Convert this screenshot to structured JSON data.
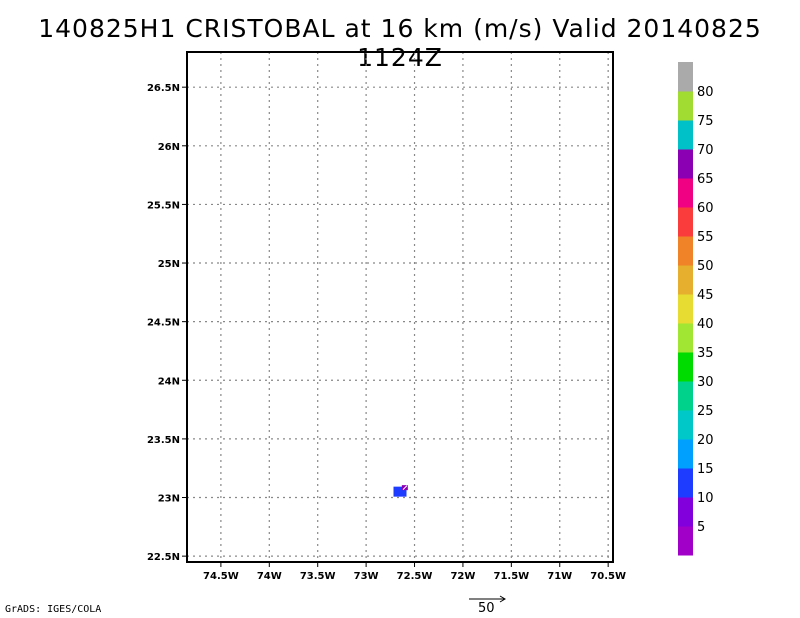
{
  "chart_data": {
    "type": "heatmap",
    "title": "140825H1 CRISTOBAL at 16 km (m/s) Valid 20140825 1124Z",
    "xlabel": "",
    "ylabel": "",
    "x_ticks": [
      "74.5W",
      "74W",
      "73.5W",
      "73W",
      "72.5W",
      "72W",
      "71.5W",
      "71W",
      "70.5W"
    ],
    "y_ticks": [
      "22.5N",
      "23N",
      "23.5N",
      "24N",
      "24.5N",
      "25N",
      "25.5N",
      "26N",
      "26.5N"
    ],
    "x_tick_values": [
      -74.5,
      -74.0,
      -73.5,
      -73.0,
      -72.5,
      -72.0,
      -71.5,
      -71.0,
      -70.5
    ],
    "y_tick_values": [
      22.5,
      23.0,
      23.5,
      24.0,
      24.5,
      25.0,
      25.5,
      26.0,
      26.5
    ],
    "xlim": [
      -74.85,
      -70.45
    ],
    "ylim": [
      22.45,
      26.8
    ],
    "grid": true,
    "colorbar": {
      "labels": [
        "5",
        "10",
        "15",
        "20",
        "25",
        "30",
        "35",
        "40",
        "45",
        "50",
        "55",
        "60",
        "65",
        "70",
        "75",
        "80"
      ],
      "colors": [
        "#a000c8",
        "#8200dc",
        "#1e3cff",
        "#00a0ff",
        "#00c8c8",
        "#00d28c",
        "#00dc00",
        "#a0e632",
        "#e6dc32",
        "#e6af2d",
        "#f08228",
        "#fa3c3c",
        "#f00082",
        "#8c00b4",
        "#00c0c8",
        "#a0dc32",
        "#aaaaaa"
      ]
    },
    "data": [
      {
        "lon": -72.65,
        "lat": 23.05,
        "speed": 10,
        "color": "#1e3cff"
      },
      {
        "lon": -72.6,
        "lat": 23.08,
        "speed": 70,
        "color": "#8c00b4"
      }
    ],
    "vector_reference": {
      "value": "50"
    }
  },
  "footer": {
    "credit": "GrADS: IGES/COLA"
  }
}
